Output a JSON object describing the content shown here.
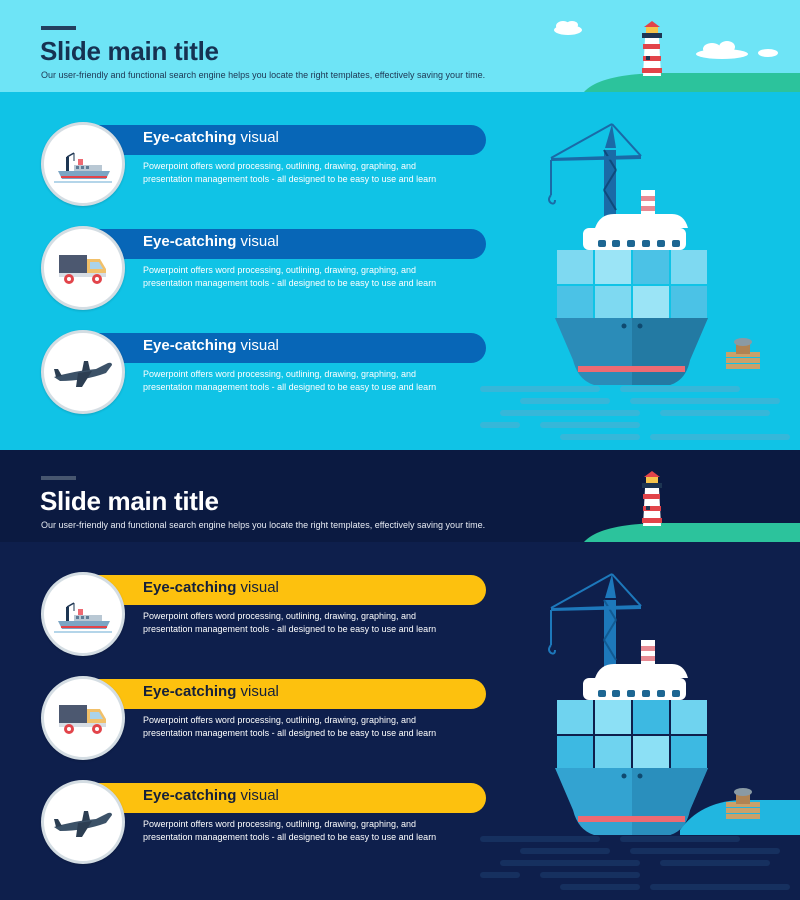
{
  "slides": [
    {
      "theme": "light",
      "colors": {
        "background": "#10c3e6",
        "top_band": "#6ee4f6",
        "bar": "#0766b7"
      },
      "title": "Slide main title",
      "subtitle": "Our user-friendly and functional search engine helps you locate the right templates, effectively saving your time.",
      "items": [
        {
          "icon": "cargo-ship-icon",
          "heading_bold": "Eye-catching",
          "heading_rest": " visual",
          "desc_line1": "Powerpoint offers word processing, outlining, drawing, graphing, and",
          "desc_line2": "presentation management tools - all designed to be easy to use and learn"
        },
        {
          "icon": "delivery-truck-icon",
          "heading_bold": "Eye-catching",
          "heading_rest": " visual",
          "desc_line1": "Powerpoint offers word processing, outlining, drawing, graphing, and",
          "desc_line2": "presentation management tools - all designed to be easy to use and learn"
        },
        {
          "icon": "airplane-icon",
          "heading_bold": "Eye-catching",
          "heading_rest": " visual",
          "desc_line1": "Powerpoint offers word processing, outlining, drawing, graphing, and",
          "desc_line2": "presentation management tools - all designed to be easy to use and learn"
        }
      ]
    },
    {
      "theme": "dark",
      "colors": {
        "background": "#0e1f4c",
        "top_band": "#0b1a41",
        "bar": "#fdc10e"
      },
      "title": "Slide main title",
      "subtitle": "Our user-friendly and functional search engine helps you locate the right templates, effectively saving your time.",
      "items": [
        {
          "icon": "cargo-ship-icon",
          "heading_bold": "Eye-catching",
          "heading_rest": " visual",
          "desc_line1": "Powerpoint offers word processing, outlining, drawing, graphing, and",
          "desc_line2": "presentation management tools - all designed to be easy to use and learn"
        },
        {
          "icon": "delivery-truck-icon",
          "heading_bold": "Eye-catching",
          "heading_rest": " visual",
          "desc_line1": "Powerpoint offers word processing, outlining, drawing, graphing, and",
          "desc_line2": "presentation management tools - all designed to be easy to use and learn"
        },
        {
          "icon": "airplane-icon",
          "heading_bold": "Eye-catching",
          "heading_rest": " visual",
          "desc_line1": "Powerpoint offers word processing, outlining, drawing, graphing, and",
          "desc_line2": "presentation management tools - all designed to be easy to use and learn"
        }
      ]
    }
  ]
}
